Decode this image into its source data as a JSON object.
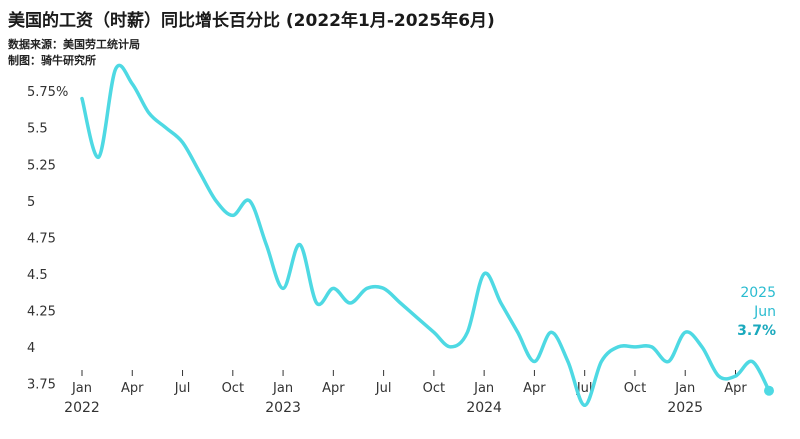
{
  "title": "美国的工资（时薪）同比增长百分比 (2022年1月-2025年6月)",
  "source_note": "数据来源：美国劳工统计局",
  "maker_note": "制图：骑牛研究所",
  "chart_data": {
    "type": "line",
    "series_color": "#4ed9e3",
    "marker_color": "#4ed9e3",
    "ylim": [
      3.65,
      5.95
    ],
    "y_ticks": [
      "5.75%",
      "5.5",
      "5.25",
      "5",
      "4.75",
      "4.5",
      "4.25",
      "4",
      "3.75"
    ],
    "y_tick_values": [
      5.75,
      5.5,
      5.25,
      5.0,
      4.75,
      4.5,
      4.25,
      4.0,
      3.75
    ],
    "x_ticks": [
      "Jan",
      "Apr",
      "Jul",
      "Oct",
      "Jan",
      "Apr",
      "Jul",
      "Oct",
      "Jan",
      "Apr",
      "Jul",
      "Oct",
      "Jan",
      "Apr"
    ],
    "x_tick_months": [
      0,
      3,
      6,
      9,
      12,
      15,
      18,
      21,
      24,
      27,
      30,
      33,
      36,
      39
    ],
    "year_labels": [
      "2022",
      "2023",
      "2024",
      "2025"
    ],
    "year_label_months": [
      0,
      12,
      24,
      36
    ],
    "x": [
      "2022-01",
      "2022-02",
      "2022-03",
      "2022-04",
      "2022-05",
      "2022-06",
      "2022-07",
      "2022-08",
      "2022-09",
      "2022-10",
      "2022-11",
      "2022-12",
      "2023-01",
      "2023-02",
      "2023-03",
      "2023-04",
      "2023-05",
      "2023-06",
      "2023-07",
      "2023-08",
      "2023-09",
      "2023-10",
      "2023-11",
      "2023-12",
      "2024-01",
      "2024-02",
      "2024-03",
      "2024-04",
      "2024-05",
      "2024-06",
      "2024-07",
      "2024-08",
      "2024-09",
      "2024-10",
      "2024-11",
      "2024-12",
      "2025-01",
      "2025-02",
      "2025-03",
      "2025-04",
      "2025-05",
      "2025-06"
    ],
    "values": [
      5.7,
      5.3,
      5.9,
      5.8,
      5.6,
      5.5,
      5.4,
      5.2,
      5.0,
      4.9,
      5.0,
      4.7,
      4.4,
      4.7,
      4.3,
      4.4,
      4.3,
      4.4,
      4.4,
      4.3,
      4.2,
      4.1,
      4.0,
      4.1,
      4.5,
      4.3,
      4.1,
      3.9,
      4.1,
      3.9,
      3.6,
      3.9,
      4.0,
      4.0,
      4.0,
      3.9,
      4.1,
      4.0,
      3.8,
      3.8,
      3.9,
      3.7
    ],
    "annotation": {
      "year": "2025",
      "month": "Jun",
      "value": "3.7%"
    }
  }
}
